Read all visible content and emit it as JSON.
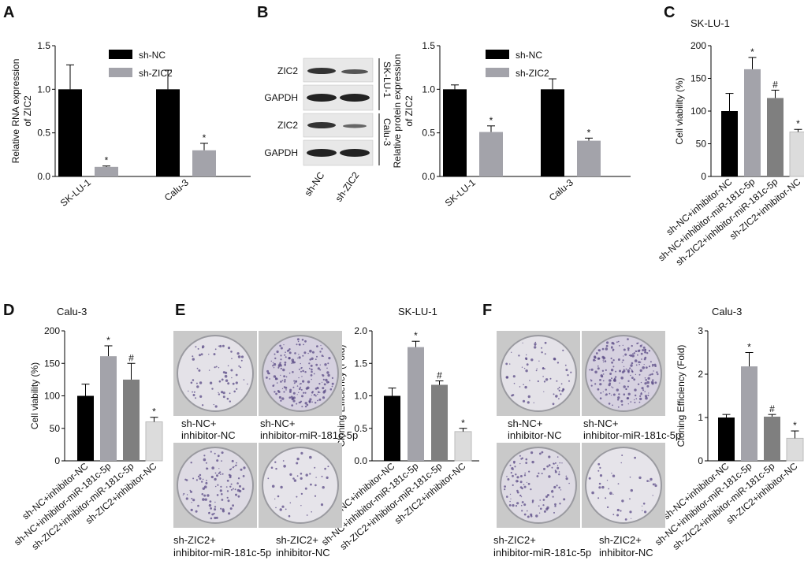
{
  "colors": {
    "black": "#000000",
    "gray1": "#a3a3aa",
    "gray2": "#7f7f7f",
    "gray3": "#dcdcdc",
    "dish": "#d9d7dd",
    "colony": "#5a4a86"
  },
  "panels": {
    "A": "A",
    "B": "B",
    "C": "C",
    "D": "D",
    "E": "E",
    "F": "F"
  },
  "blot": {
    "lanes": [
      "sh-NC",
      "sh-ZIC2"
    ],
    "rows": [
      "ZIC2",
      "GAPDH",
      "ZIC2",
      "GAPDH"
    ],
    "groups": [
      "SK-LU-1",
      "Calu-3"
    ]
  },
  "captions": {
    "E": [
      "sh-NC+",
      "inhibitor-NC",
      "sh-NC+",
      "inhibitor-miR-181c-5p",
      "sh-ZIC2+",
      "inhibitor-miR-181c-5p",
      "sh-ZIC2+",
      "inhibitor-NC"
    ],
    "F": [
      "sh-NC+",
      "inhibitor-NC",
      "sh-NC+",
      "inhibitor-miR-181c-5p",
      "sh-ZIC2+",
      "inhibitor-miR-181c-5p",
      "sh-ZIC2+",
      "inhibitor-NC"
    ]
  },
  "chart_data": [
    {
      "id": "A",
      "type": "bar",
      "title": "",
      "ylabel": "Relative RNA expression of ZIC2",
      "ylim": [
        0,
        1.5
      ],
      "yticks": [
        "0.0",
        "0.5",
        "1.0",
        "1.5"
      ],
      "categories": [
        "SK-LU-1",
        "Calu-3"
      ],
      "series": [
        {
          "name": "sh-NC",
          "values": [
            1.0,
            1.0
          ],
          "errors": [
            0.28,
            0.22
          ],
          "sig": [
            "",
            ""
          ]
        },
        {
          "name": "sh-ZIC2",
          "values": [
            0.11,
            0.3
          ],
          "errors": [
            0.01,
            0.08
          ],
          "sig": [
            "*",
            "*"
          ]
        }
      ],
      "legend": "top-right"
    },
    {
      "id": "B",
      "type": "bar",
      "title": "",
      "ylabel": "Relative protein expression of ZIC2",
      "ylim": [
        0,
        1.5
      ],
      "yticks": [
        "0.0",
        "0.5",
        "1.0",
        "1.5"
      ],
      "categories": [
        "SK-LU-1",
        "Calu-3"
      ],
      "series": [
        {
          "name": "sh-NC",
          "values": [
            1.0,
            1.0
          ],
          "errors": [
            0.05,
            0.12
          ],
          "sig": [
            "",
            ""
          ]
        },
        {
          "name": "sh-ZIC2",
          "values": [
            0.51,
            0.41
          ],
          "errors": [
            0.07,
            0.03
          ],
          "sig": [
            "*",
            "*"
          ]
        }
      ],
      "legend": "top-right"
    },
    {
      "id": "C",
      "type": "bar",
      "title": "SK-LU-1",
      "ylabel": "Cell viability (%)",
      "ylim": [
        0,
        200
      ],
      "yticks": [
        "0",
        "50",
        "100",
        "150",
        "200"
      ],
      "categories": [
        "sh-NC+inhibitor-NC",
        "sh-NC+inhibitor-miR-181c-5p",
        "sh-ZIC2+inhibitor-miR-181c-5p",
        "sh-ZIC2+inhibitor-NC"
      ],
      "values": [
        100,
        164,
        120,
        68
      ],
      "errors": [
        27,
        18,
        12,
        4
      ],
      "sig": [
        "",
        "*",
        "#",
        "*"
      ]
    },
    {
      "id": "D",
      "type": "bar",
      "title": "Calu-3",
      "ylabel": "Cell viability (%)",
      "ylim": [
        0,
        200
      ],
      "yticks": [
        "0",
        "50",
        "100",
        "150",
        "200"
      ],
      "categories": [
        "sh-NC+inhibitor-NC",
        "sh-NC+inhibitor-miR-181c-5p",
        "sh-ZIC2+inhibitor-miR-181c-5p",
        "sh-ZIC2+inhibitor-NC"
      ],
      "values": [
        100,
        161,
        125,
        60
      ],
      "errors": [
        18,
        16,
        25,
        7
      ],
      "sig": [
        "",
        "*",
        "#",
        "*"
      ]
    },
    {
      "id": "E",
      "type": "bar",
      "title": "SK-LU-1",
      "ylabel": "Cloning Efficiency (Fold)",
      "ylim": [
        0,
        2.0
      ],
      "yticks": [
        "0.0",
        "0.5",
        "1.0",
        "1.5",
        "2.0"
      ],
      "categories": [
        "sh-NC+inhibitor-NC",
        "sh-NC+inhibitor-miR-181c-5p",
        "sh-ZIC2+inhibitor-miR-181c-5p",
        "sh-ZIC2+inhibitor-NC"
      ],
      "values": [
        1.0,
        1.75,
        1.17,
        0.45
      ],
      "errors": [
        0.12,
        0.09,
        0.06,
        0.05
      ],
      "sig": [
        "",
        "*",
        "#",
        "*"
      ]
    },
    {
      "id": "F",
      "type": "bar",
      "title": "Calu-3",
      "ylabel": "Cloning Efficiency (Fold)",
      "ylim": [
        0,
        3
      ],
      "yticks": [
        "0",
        "1",
        "2",
        "3"
      ],
      "categories": [
        "sh-NC+inhibitor-NC",
        "sh-NC+inhibitor-miR-181c-5p",
        "sh-ZIC2+inhibitor-miR-181c-5p",
        "sh-ZIC2+inhibitor-NC"
      ],
      "values": [
        1.0,
        2.18,
        1.02,
        0.52
      ],
      "errors": [
        0.07,
        0.32,
        0.05,
        0.17
      ],
      "sig": [
        "",
        "*",
        "#",
        "*"
      ]
    }
  ]
}
